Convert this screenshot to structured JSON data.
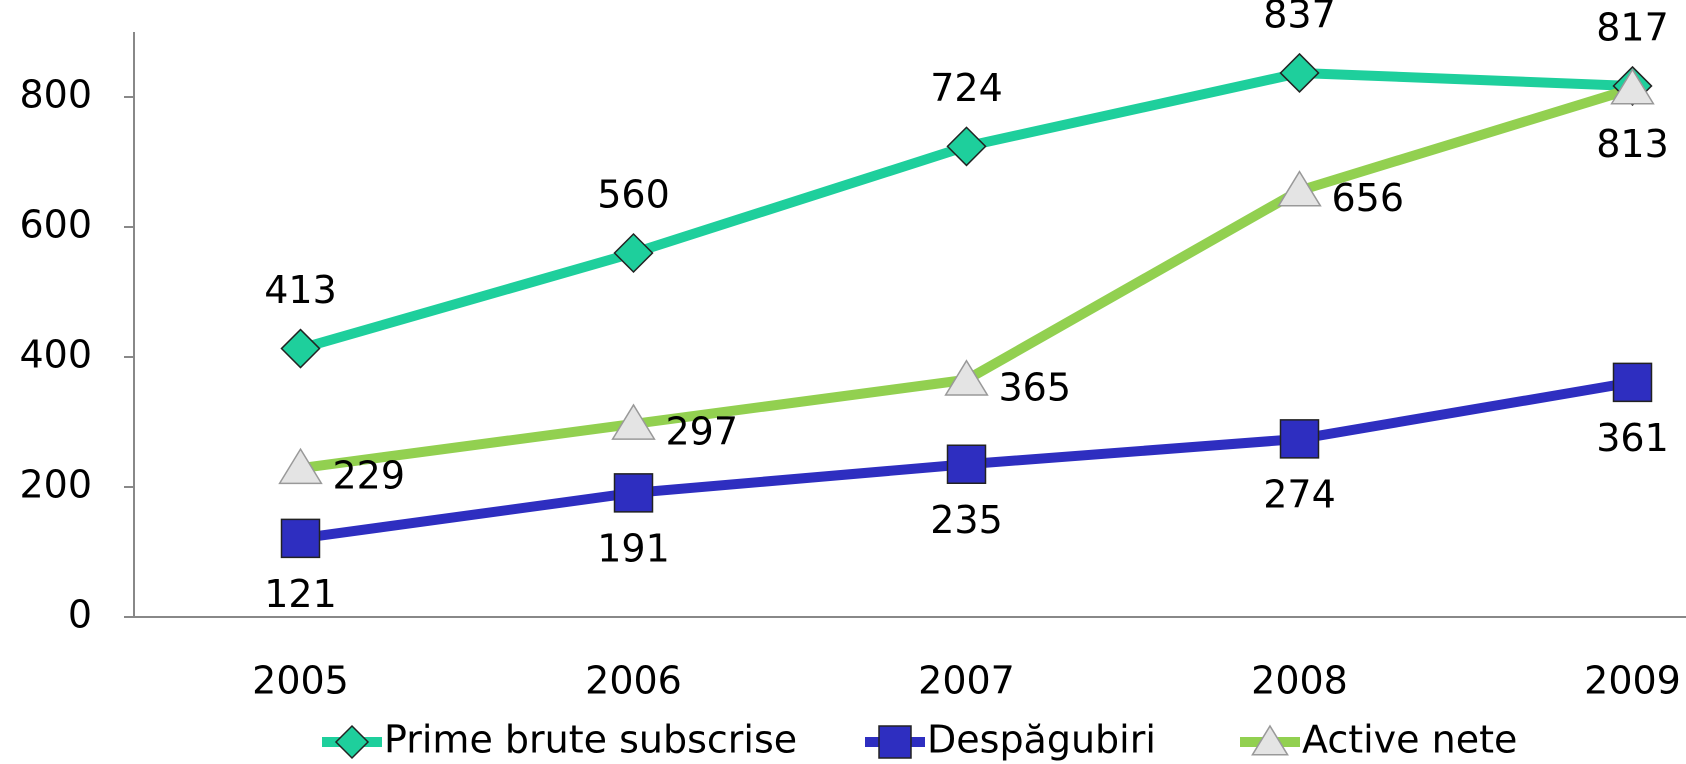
{
  "chart_data": {
    "type": "line",
    "categories": [
      "2005",
      "2006",
      "2007",
      "2008",
      "2009"
    ],
    "series": [
      {
        "name": "Prime brute subscrise",
        "color": "#1ecf9c",
        "marker": "diamond",
        "values": [
          413,
          560,
          724,
          837,
          817
        ]
      },
      {
        "name": "Despăgubiri",
        "color": "#2e2ec0",
        "marker": "square",
        "values": [
          121,
          191,
          235,
          274,
          361
        ]
      },
      {
        "name": "Active nete",
        "color": "#92d050",
        "marker": "triangle",
        "values": [
          229,
          297,
          365,
          656,
          813
        ]
      }
    ],
    "ylim": [
      0,
      900
    ],
    "yticks": [
      0,
      200,
      400,
      600,
      800
    ],
    "legend": "bottom"
  }
}
